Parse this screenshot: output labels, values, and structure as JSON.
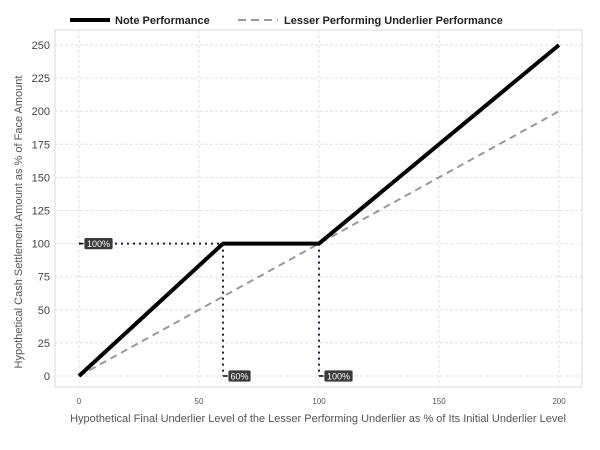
{
  "chart_data": {
    "type": "line",
    "title": "",
    "xlabel": "Hypothetical Final Underlier Level of the Lesser Performing Underlier as % of Its Initial Underlier Level",
    "ylabel": "Hypothetical Cash Settlement Amount as % of Face Amount",
    "xlim": [
      0,
      200
    ],
    "ylim": [
      0,
      250
    ],
    "x_ticks": [
      0,
      50,
      100,
      150,
      200
    ],
    "y_ticks": [
      0,
      25,
      50,
      75,
      100,
      125,
      150,
      175,
      200,
      225,
      250
    ],
    "grid": true,
    "legend": "top",
    "series": [
      {
        "name": "Note Performance",
        "style": "solid",
        "color": "#000000",
        "points": [
          [
            0,
            0
          ],
          [
            60,
            100
          ],
          [
            100,
            100
          ],
          [
            200,
            250
          ]
        ]
      },
      {
        "name": "Lesser Performing Underlier Performance",
        "style": "dashed",
        "color": "#999999",
        "points": [
          [
            0,
            0
          ],
          [
            200,
            200
          ]
        ]
      }
    ],
    "reference_lines": [
      {
        "points": [
          [
            0,
            100
          ],
          [
            60,
            100
          ]
        ]
      },
      {
        "points": [
          [
            60,
            100
          ],
          [
            60,
            0
          ]
        ]
      },
      {
        "points": [
          [
            100,
            100
          ],
          [
            100,
            0
          ]
        ]
      }
    ],
    "annotations": [
      {
        "text": "100%",
        "x": 0,
        "y": 100
      },
      {
        "text": "60%",
        "x": 60,
        "y": 0
      },
      {
        "text": "100%",
        "x": 100,
        "y": 0
      }
    ]
  }
}
